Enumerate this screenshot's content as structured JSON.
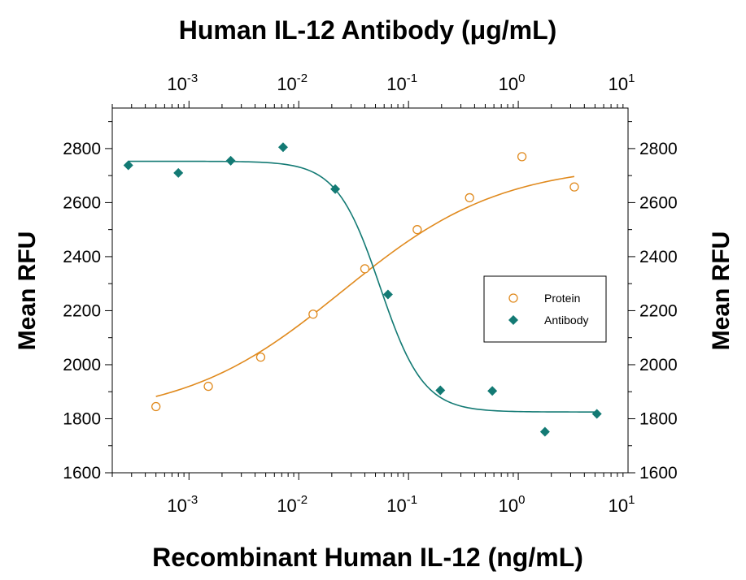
{
  "chart_data": {
    "type": "scatter",
    "title": "Human IL-12 Antibody (μg/mL)",
    "xlabel": "Recombinant Human IL-12 (ng/mL)",
    "ylabel": "Mean RFU",
    "ylabel_right": "Mean RFU",
    "x_scale": "log",
    "xlim": [
      0.0002,
      10
    ],
    "x_top_scale": "log",
    "x_top_lim": [
      0.0002,
      10
    ],
    "ylim": [
      1600,
      2950
    ],
    "x_ticks": [
      {
        "base": "10",
        "exp": "-3",
        "value": 0.001
      },
      {
        "base": "10",
        "exp": "-2",
        "value": 0.01
      },
      {
        "base": "10",
        "exp": "-1",
        "value": 0.1
      },
      {
        "base": "10",
        "exp": "0",
        "value": 1
      },
      {
        "base": "10",
        "exp": "1",
        "value": 10
      }
    ],
    "y_ticks": [
      "1600",
      "1800",
      "2000",
      "2200",
      "2400",
      "2600",
      "2800"
    ],
    "y_tick_values": [
      1600,
      1800,
      2000,
      2200,
      2400,
      2600,
      2800
    ],
    "legend": {
      "position": "right-middle",
      "entries": [
        {
          "label": "Protein",
          "marker": "open-circle",
          "color": "#E08A1E"
        },
        {
          "label": "Antibody",
          "marker": "filled-diamond",
          "color": "#137A74"
        }
      ]
    },
    "series": [
      {
        "name": "Protein",
        "axis": "bottom",
        "color": "#E08A1E",
        "marker": "open-circle",
        "points": [
          {
            "x": 0.0005,
            "y": 1845
          },
          {
            "x": 0.0015,
            "y": 1920
          },
          {
            "x": 0.0045,
            "y": 2028
          },
          {
            "x": 0.0135,
            "y": 2187
          },
          {
            "x": 0.04,
            "y": 2355
          },
          {
            "x": 0.12,
            "y": 2500
          },
          {
            "x": 0.36,
            "y": 2618
          },
          {
            "x": 1.08,
            "y": 2770
          },
          {
            "x": 3.24,
            "y": 2658
          }
        ],
        "fit": {
          "model": "4PL",
          "bottom": 1800,
          "top": 2745,
          "ec50": 0.025,
          "hill": 0.6,
          "x_range": [
            0.0005,
            3.24
          ]
        }
      },
      {
        "name": "Antibody",
        "axis": "top",
        "color": "#137A74",
        "marker": "filled-diamond",
        "points": [
          {
            "x": 0.00028,
            "y": 2738
          },
          {
            "x": 0.0008,
            "y": 2710
          },
          {
            "x": 0.0024,
            "y": 2755
          },
          {
            "x": 0.0072,
            "y": 2805
          },
          {
            "x": 0.0215,
            "y": 2650
          },
          {
            "x": 0.065,
            "y": 2260
          },
          {
            "x": 0.195,
            "y": 1905
          },
          {
            "x": 0.58,
            "y": 1903
          },
          {
            "x": 1.75,
            "y": 1752
          },
          {
            "x": 5.2,
            "y": 1818
          }
        ],
        "fit": {
          "model": "4PL",
          "bottom": 1825,
          "top": 2753,
          "ec50": 0.055,
          "hill": 2.2,
          "x_range": [
            0.00028,
            5.2
          ]
        }
      }
    ],
    "grid": false
  }
}
